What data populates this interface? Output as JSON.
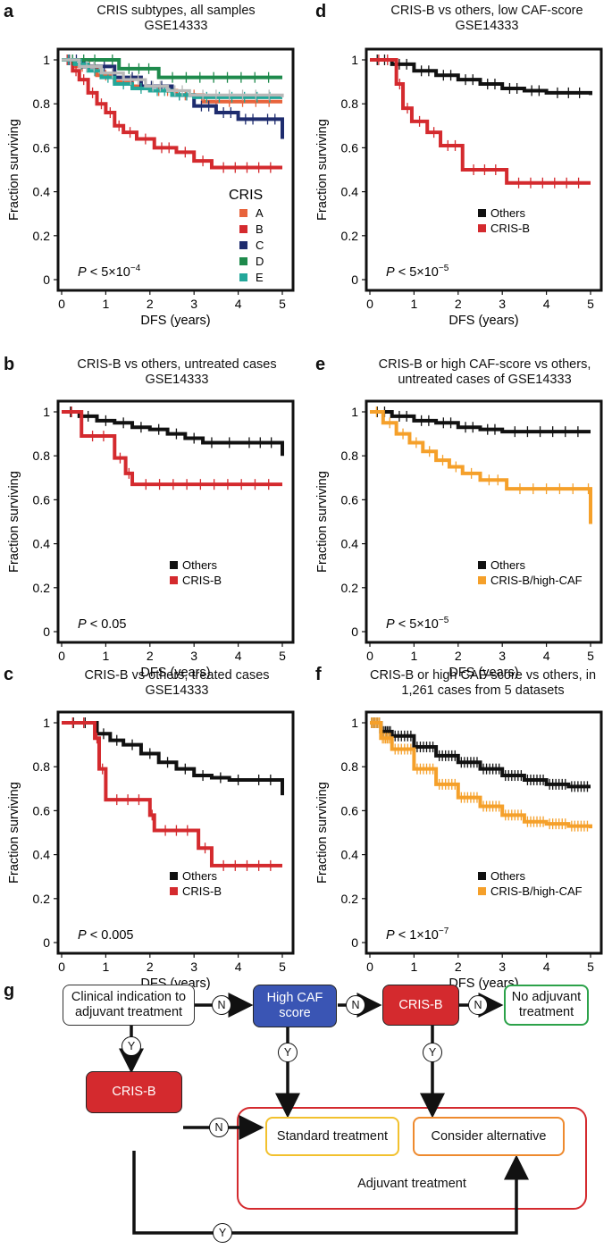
{
  "panels": {
    "a": {
      "letter": "a",
      "title1": "CRIS subtypes, all samples",
      "title2": "GSE14333"
    },
    "b": {
      "letter": "b",
      "title1": "CRIS-B vs others, untreated cases",
      "title2": "GSE14333"
    },
    "c": {
      "letter": "c",
      "title1": "CRIS-B vs others, treated cases",
      "title2": "GSE14333"
    },
    "d": {
      "letter": "d",
      "title1": "CRIS-B vs others, low CAF-score",
      "title2": "GSE14333"
    },
    "e": {
      "letter": "e",
      "title1": "CRIS-B or high CAF-score vs others,",
      "title2": "untreated cases of GSE14333"
    },
    "f": {
      "letter": "f",
      "title1": "CRIS-B or high CAF-score vs others, in",
      "title2": "1,261 cases from 5 datasets"
    },
    "g": {
      "letter": "g"
    }
  },
  "chart_data": [
    {
      "id": "a",
      "type": "line",
      "title": "CRIS subtypes, all samples GSE14333",
      "xlabel": "DFS (years)",
      "ylabel": "Fraction surviving",
      "xlim": [
        0,
        5
      ],
      "ylim": [
        0,
        1
      ],
      "xticks": [
        "0",
        "1",
        "2",
        "3",
        "4",
        "5"
      ],
      "yticks": [
        "0",
        "0.2",
        "0.4",
        "0.6",
        "0.8",
        "1"
      ],
      "pvalue": {
        "prefix": "P",
        "text": " < 5×10",
        "exp": "−4"
      },
      "legend_title": "CRIS",
      "legend_position": "right",
      "series": [
        {
          "name": "A",
          "color": "#e8643c",
          "x": [
            0,
            0.3,
            0.8,
            1.2,
            1.6,
            2.0,
            2.6,
            3.2,
            5.0
          ],
          "y": [
            1,
            0.97,
            0.93,
            0.9,
            0.88,
            0.86,
            0.84,
            0.81,
            0.81
          ]
        },
        {
          "name": "B",
          "color": "#d42a2e",
          "x": [
            0,
            0.25,
            0.4,
            0.6,
            0.8,
            1.0,
            1.2,
            1.4,
            1.7,
            2.1,
            2.6,
            3.0,
            3.4,
            5.0
          ],
          "y": [
            1,
            0.95,
            0.91,
            0.85,
            0.8,
            0.76,
            0.7,
            0.67,
            0.64,
            0.6,
            0.58,
            0.54,
            0.51,
            0.51
          ]
        },
        {
          "name": "C",
          "color": "#1e2c6e",
          "x": [
            0,
            0.5,
            1.2,
            1.8,
            2.5,
            3.0,
            3.5,
            4.0,
            4.5,
            5.0
          ],
          "y": [
            1,
            0.97,
            0.92,
            0.88,
            0.84,
            0.79,
            0.76,
            0.73,
            0.73,
            0.64
          ]
        },
        {
          "name": "D",
          "color": "#1e8a4c",
          "x": [
            0,
            1.0,
            1.3,
            2.2,
            5.0
          ],
          "y": [
            1,
            1,
            0.96,
            0.92,
            0.92
          ]
        },
        {
          "name": "E",
          "color": "#23a79a",
          "x": [
            0,
            0.3,
            0.6,
            0.9,
            1.2,
            1.6,
            2.0,
            2.5,
            3.0,
            5.0
          ],
          "y": [
            1,
            0.98,
            0.95,
            0.92,
            0.89,
            0.87,
            0.86,
            0.84,
            0.83,
            0.83
          ]
        },
        {
          "name": "",
          "color": "#b8b8b8",
          "x": [
            0,
            0.4,
            0.9,
            1.4,
            1.9,
            2.4,
            2.9,
            5.0
          ],
          "y": [
            1,
            0.97,
            0.94,
            0.91,
            0.88,
            0.86,
            0.84,
            0.83
          ]
        }
      ]
    },
    {
      "id": "b",
      "type": "line",
      "title": "CRIS-B vs others, untreated cases GSE14333",
      "xlabel": "DFS (years)",
      "ylabel": "Fraction surviving",
      "xlim": [
        0,
        5
      ],
      "ylim": [
        0,
        1
      ],
      "xticks": [
        "0",
        "1",
        "2",
        "3",
        "4",
        "5"
      ],
      "yticks": [
        "0",
        "0.2",
        "0.4",
        "0.6",
        "0.8",
        "1"
      ],
      "pvalue": {
        "prefix": "P",
        "text": " < 0.05",
        "exp": ""
      },
      "legend_title": "",
      "legend_position": "bottom-right",
      "series": [
        {
          "name": "Others",
          "color": "#111111",
          "x": [
            0,
            0.4,
            0.8,
            1.2,
            1.6,
            2.0,
            2.4,
            2.8,
            3.2,
            3.6,
            4.0,
            5.0
          ],
          "y": [
            1,
            0.98,
            0.96,
            0.95,
            0.93,
            0.92,
            0.9,
            0.88,
            0.86,
            0.86,
            0.86,
            0.8
          ]
        },
        {
          "name": "CRIS-B",
          "color": "#d42a2e",
          "x": [
            0,
            0.45,
            1.2,
            1.45,
            1.6,
            5.0
          ],
          "y": [
            1,
            0.89,
            0.79,
            0.72,
            0.67,
            0.67
          ]
        }
      ]
    },
    {
      "id": "c",
      "type": "line",
      "title": "CRIS-B vs others, treated cases GSE14333",
      "xlabel": "DFS (years)",
      "ylabel": "Fraction surviving",
      "xlim": [
        0,
        5
      ],
      "ylim": [
        0,
        1
      ],
      "xticks": [
        "0",
        "1",
        "2",
        "3",
        "4",
        "5"
      ],
      "yticks": [
        "0",
        "0.2",
        "0.4",
        "0.6",
        "0.8",
        "1"
      ],
      "pvalue": {
        "prefix": "P",
        "text": " < 0.005",
        "exp": ""
      },
      "legend_title": "",
      "legend_position": "bottom-right",
      "series": [
        {
          "name": "Others",
          "color": "#111111",
          "x": [
            0,
            0.8,
            1.1,
            1.4,
            1.8,
            2.2,
            2.6,
            3.0,
            3.4,
            3.8,
            4.2,
            5.0
          ],
          "y": [
            1,
            0.95,
            0.92,
            0.9,
            0.86,
            0.82,
            0.79,
            0.76,
            0.75,
            0.74,
            0.74,
            0.67
          ]
        },
        {
          "name": "CRIS-B",
          "color": "#d42a2e",
          "x": [
            0,
            0.75,
            0.85,
            1.0,
            2.0,
            2.1,
            3.1,
            3.4,
            5.0
          ],
          "y": [
            1,
            0.93,
            0.79,
            0.65,
            0.58,
            0.51,
            0.43,
            0.35,
            0.35
          ]
        }
      ]
    },
    {
      "id": "d",
      "type": "line",
      "title": "CRIS-B vs others, low CAF-score GSE14333",
      "xlabel": "DFS (years)",
      "ylabel": "Fraction surviving",
      "xlim": [
        0,
        5
      ],
      "ylim": [
        0,
        1
      ],
      "xticks": [
        "0",
        "1",
        "2",
        "3",
        "4",
        "5"
      ],
      "yticks": [
        "0",
        "0.2",
        "0.4",
        "0.6",
        "0.8",
        "1"
      ],
      "pvalue": {
        "prefix": "P",
        "text": " < 5×10",
        "exp": "−5"
      },
      "legend_title": "",
      "legend_position": "bottom-right",
      "series": [
        {
          "name": "Others",
          "color": "#111111",
          "x": [
            0,
            0.5,
            1.0,
            1.5,
            2.0,
            2.5,
            3.0,
            3.5,
            4.0,
            5.0
          ],
          "y": [
            1,
            0.98,
            0.95,
            0.93,
            0.91,
            0.89,
            0.87,
            0.86,
            0.85,
            0.84
          ]
        },
        {
          "name": "CRIS-B",
          "color": "#d42a2e",
          "x": [
            0,
            0.6,
            0.75,
            0.95,
            1.3,
            1.6,
            2.1,
            3.1,
            5.0
          ],
          "y": [
            1,
            0.89,
            0.78,
            0.72,
            0.67,
            0.61,
            0.5,
            0.44,
            0.44
          ]
        }
      ]
    },
    {
      "id": "e",
      "type": "line",
      "title": "CRIS-B or high CAF-score vs others, untreated cases of GSE14333",
      "xlabel": "DFS (years)",
      "ylabel": "Fraction surviving",
      "xlim": [
        0,
        5
      ],
      "ylim": [
        0,
        1
      ],
      "xticks": [
        "0",
        "1",
        "2",
        "3",
        "4",
        "5"
      ],
      "yticks": [
        "0",
        "0.2",
        "0.4",
        "0.6",
        "0.8",
        "1"
      ],
      "pvalue": {
        "prefix": "P",
        "text": " < 5×10",
        "exp": "−5"
      },
      "legend_title": "",
      "legend_position": "bottom-right",
      "series": [
        {
          "name": "Others",
          "color": "#111111",
          "x": [
            0,
            0.5,
            1.0,
            1.5,
            2.0,
            2.5,
            3.0,
            5.0
          ],
          "y": [
            1,
            0.98,
            0.96,
            0.95,
            0.93,
            0.92,
            0.91,
            0.91
          ]
        },
        {
          "name": "CRIS-B/high-CAF",
          "color": "#f5a02a",
          "x": [
            0,
            0.3,
            0.6,
            0.9,
            1.2,
            1.5,
            1.8,
            2.1,
            2.5,
            3.1,
            4.9,
            5.0
          ],
          "y": [
            1,
            0.95,
            0.9,
            0.86,
            0.82,
            0.78,
            0.75,
            0.72,
            0.69,
            0.65,
            0.65,
            0.49
          ]
        }
      ]
    },
    {
      "id": "f",
      "type": "line",
      "title": "CRIS-B or high CAF-score vs others, in 1,261 cases from 5 datasets",
      "xlabel": "DFS (years)",
      "ylabel": "Fraction surviving",
      "xlim": [
        0,
        5
      ],
      "ylim": [
        0,
        1
      ],
      "xticks": [
        "0",
        "1",
        "2",
        "3",
        "4",
        "5"
      ],
      "yticks": [
        "0",
        "0.2",
        "0.4",
        "0.6",
        "0.8",
        "1"
      ],
      "pvalue": {
        "prefix": "P",
        "text": " < 1×10",
        "exp": "−7"
      },
      "legend_title": "",
      "legend_position": "bottom-right",
      "series": [
        {
          "name": "Others",
          "color": "#111111",
          "x": [
            0,
            0.25,
            0.5,
            1.0,
            1.5,
            2.0,
            2.5,
            3.0,
            3.5,
            4.0,
            4.5,
            5.0
          ],
          "y": [
            1,
            0.96,
            0.94,
            0.89,
            0.85,
            0.82,
            0.79,
            0.76,
            0.74,
            0.72,
            0.71,
            0.71
          ]
        },
        {
          "name": "CRIS-B/high-CAF",
          "color": "#f5a02a",
          "x": [
            0,
            0.25,
            0.5,
            1.0,
            1.5,
            2.0,
            2.5,
            3.0,
            3.5,
            4.0,
            4.5,
            5.0
          ],
          "y": [
            1,
            0.93,
            0.88,
            0.79,
            0.72,
            0.66,
            0.62,
            0.58,
            0.55,
            0.54,
            0.53,
            0.52
          ]
        }
      ]
    }
  ],
  "flowchart": {
    "clinical_line1": "Clinical indication to",
    "clinical_line2": "adjuvant treatment",
    "high_caf_line1": "High CAF",
    "high_caf_line2": "score",
    "crisb_top": "CRIS-B",
    "no_adj_line1": "No adjuvant",
    "no_adj_line2": "treatment",
    "crisb_left": "CRIS-B",
    "standard": "Standard treatment",
    "consider": "Consider alternative",
    "adjuvant": "Adjuvant treatment",
    "n_label": "N",
    "y_label": "Y",
    "colors": {
      "blue": "#3a55b4",
      "red": "#d42a2e",
      "green": "#2ca24a",
      "yellow": "#f2c12e",
      "orange": "#ee8a2e"
    }
  }
}
